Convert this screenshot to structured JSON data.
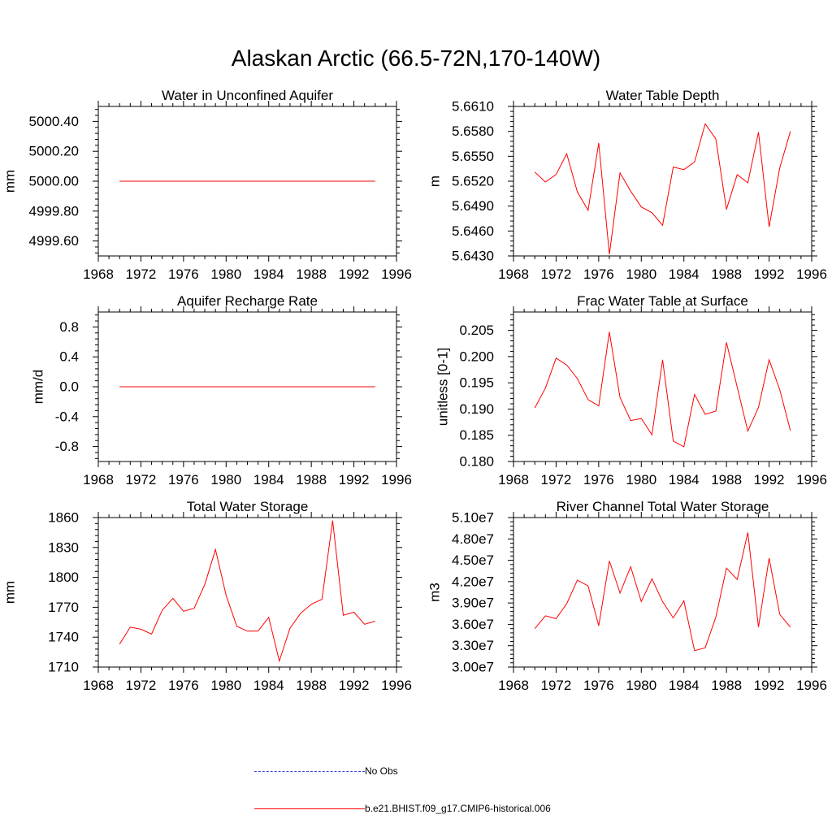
{
  "figure": {
    "title": "Alaskan Arctic (66.5-72N,170-140W)",
    "line_color": "#ff0000",
    "obs_color": "#3b3bd6"
  },
  "legend": {
    "entries": [
      {
        "label": "No Obs",
        "style": "dashed",
        "color": "#3b3bd6"
      },
      {
        "label": "b.e21.BHIST.f09_g17.CMIP6-historical.006",
        "style": "solid",
        "color": "#ff0000"
      }
    ]
  },
  "chart_data": [
    {
      "type": "line",
      "title": "Water in Unconfined Aquifer",
      "xlabel": "",
      "ylabel": "mm",
      "xlim": [
        1968,
        1996
      ],
      "ylim": [
        4999.5,
        5000.5
      ],
      "x_ticks": [
        1968,
        1972,
        1976,
        1980,
        1984,
        1988,
        1992,
        1996
      ],
      "y_ticks": [
        4999.6,
        4999.8,
        5000.0,
        5000.2,
        5000.4
      ],
      "y_tick_labels": [
        "4999.60",
        "4999.80",
        "5000.00",
        "5000.20",
        "5000.40"
      ],
      "x": [
        1970,
        1971,
        1972,
        1973,
        1974,
        1975,
        1976,
        1977,
        1978,
        1979,
        1980,
        1981,
        1982,
        1983,
        1984,
        1985,
        1986,
        1987,
        1988,
        1989,
        1990,
        1991,
        1992,
        1993,
        1994
      ],
      "series": [
        {
          "values": [
            5000,
            5000,
            5000,
            5000,
            5000,
            5000,
            5000,
            5000,
            5000,
            5000,
            5000,
            5000,
            5000,
            5000,
            5000,
            5000,
            5000,
            5000,
            5000,
            5000,
            5000,
            5000,
            5000,
            5000,
            5000
          ]
        }
      ]
    },
    {
      "type": "line",
      "title": "Water Table Depth",
      "xlabel": "",
      "ylabel": "m",
      "xlim": [
        1968,
        1996
      ],
      "ylim": [
        5.643,
        5.661
      ],
      "x_ticks": [
        1968,
        1972,
        1976,
        1980,
        1984,
        1988,
        1992,
        1996
      ],
      "y_ticks": [
        5.643,
        5.646,
        5.649,
        5.652,
        5.655,
        5.658,
        5.661
      ],
      "y_tick_labels": [
        "5.6430",
        "5.6460",
        "5.6490",
        "5.6520",
        "5.6550",
        "5.6580",
        "5.6610"
      ],
      "x": [
        1970,
        1971,
        1972,
        1973,
        1974,
        1975,
        1976,
        1977,
        1978,
        1979,
        1980,
        1981,
        1982,
        1983,
        1984,
        1985,
        1986,
        1987,
        1988,
        1989,
        1990,
        1991,
        1992,
        1993,
        1994
      ],
      "series": [
        {
          "values": [
            5.6531,
            5.6519,
            5.6528,
            5.6553,
            5.6507,
            5.6485,
            5.6566,
            5.6432,
            5.653,
            5.6508,
            5.6489,
            5.6482,
            5.6467,
            5.6537,
            5.6534,
            5.6543,
            5.6589,
            5.6571,
            5.6486,
            5.6528,
            5.6518,
            5.6579,
            5.6465,
            5.6536,
            5.658
          ]
        }
      ]
    },
    {
      "type": "line",
      "title": "Aquifer Recharge Rate",
      "xlabel": "",
      "ylabel": "mm/d",
      "xlim": [
        1968,
        1996
      ],
      "ylim": [
        -1.0,
        1.0
      ],
      "x_ticks": [
        1968,
        1972,
        1976,
        1980,
        1984,
        1988,
        1992,
        1996
      ],
      "y_ticks": [
        -0.8,
        -0.4,
        0.0,
        0.4,
        0.8
      ],
      "y_tick_labels": [
        "-0.8",
        "-0.4",
        "0.0",
        "0.4",
        "0.8"
      ],
      "x": [
        1970,
        1971,
        1972,
        1973,
        1974,
        1975,
        1976,
        1977,
        1978,
        1979,
        1980,
        1981,
        1982,
        1983,
        1984,
        1985,
        1986,
        1987,
        1988,
        1989,
        1990,
        1991,
        1992,
        1993,
        1994
      ],
      "series": [
        {
          "values": [
            0,
            0,
            0,
            0,
            0,
            0,
            0,
            0,
            0,
            0,
            0,
            0,
            0,
            0,
            0,
            0,
            0,
            0,
            0,
            0,
            0,
            0,
            0,
            0,
            0
          ]
        }
      ]
    },
    {
      "type": "line",
      "title": "Frac Water Table at Surface",
      "xlabel": "",
      "ylabel": "unitless [0-1]",
      "xlim": [
        1968,
        1996
      ],
      "ylim": [
        0.18,
        0.2085
      ],
      "x_ticks": [
        1968,
        1972,
        1976,
        1980,
        1984,
        1988,
        1992,
        1996
      ],
      "y_ticks": [
        0.18,
        0.185,
        0.19,
        0.195,
        0.2,
        0.205
      ],
      "y_tick_labels": [
        "0.180",
        "0.185",
        "0.190",
        "0.195",
        "0.200",
        "0.205"
      ],
      "x": [
        1970,
        1971,
        1972,
        1973,
        1974,
        1975,
        1976,
        1977,
        1978,
        1979,
        1980,
        1981,
        1982,
        1983,
        1984,
        1985,
        1986,
        1987,
        1988,
        1989,
        1990,
        1991,
        1992,
        1993,
        1994
      ],
      "series": [
        {
          "values": [
            0.1902,
            0.194,
            0.1997,
            0.1984,
            0.1958,
            0.1918,
            0.1906,
            0.2047,
            0.1922,
            0.1878,
            0.1882,
            0.1851,
            0.1994,
            0.1839,
            0.1828,
            0.1928,
            0.189,
            0.1896,
            0.2027,
            0.1942,
            0.1858,
            0.1903,
            0.1994,
            0.1937,
            0.1859
          ]
        }
      ]
    },
    {
      "type": "line",
      "title": "Total Water Storage",
      "xlabel": "",
      "ylabel": "mm",
      "xlim": [
        1968,
        1996
      ],
      "ylim": [
        1710,
        1860
      ],
      "x_ticks": [
        1968,
        1972,
        1976,
        1980,
        1984,
        1988,
        1992,
        1996
      ],
      "y_ticks": [
        1710,
        1740,
        1770,
        1800,
        1830,
        1860
      ],
      "y_tick_labels": [
        "1710",
        "1740",
        "1770",
        "1800",
        "1830",
        "1860"
      ],
      "x": [
        1970,
        1971,
        1972,
        1973,
        1974,
        1975,
        1976,
        1977,
        1978,
        1979,
        1980,
        1981,
        1982,
        1983,
        1984,
        1985,
        1986,
        1987,
        1988,
        1989,
        1990,
        1991,
        1992,
        1993,
        1994
      ],
      "series": [
        {
          "values": [
            1733,
            1750,
            1748,
            1743,
            1767,
            1779,
            1766,
            1769,
            1793,
            1828,
            1782,
            1751,
            1746,
            1746,
            1760,
            1716,
            1749,
            1764,
            1773,
            1778,
            1857,
            1762,
            1765,
            1753,
            1756
          ]
        }
      ]
    },
    {
      "type": "line",
      "title": "River Channel Total Water Storage",
      "xlabel": "",
      "ylabel": "m3",
      "xlim": [
        1968,
        1996
      ],
      "ylim": [
        30000000,
        51000000
      ],
      "x_ticks": [
        1968,
        1972,
        1976,
        1980,
        1984,
        1988,
        1992,
        1996
      ],
      "y_ticks": [
        30000000,
        33000000,
        36000000,
        39000000,
        42000000,
        45000000,
        48000000,
        51000000
      ],
      "y_tick_labels": [
        "3.00e7",
        "3.30e7",
        "3.60e7",
        "3.90e7",
        "4.20e7",
        "4.50e7",
        "4.80e7",
        "5.10e7"
      ],
      "x": [
        1970,
        1971,
        1972,
        1973,
        1974,
        1975,
        1976,
        1977,
        1978,
        1979,
        1980,
        1981,
        1982,
        1983,
        1984,
        1985,
        1986,
        1987,
        1988,
        1989,
        1990,
        1991,
        1992,
        1993,
        1994
      ],
      "series": [
        {
          "values": [
            35400000,
            37200000,
            36800000,
            38900000,
            42200000,
            41400000,
            35800000,
            44900000,
            40400000,
            44100000,
            39200000,
            42400000,
            39200000,
            36900000,
            39300000,
            32300000,
            32700000,
            37000000,
            43900000,
            42300000,
            48900000,
            35600000,
            45300000,
            37400000,
            35600000
          ]
        }
      ]
    }
  ]
}
